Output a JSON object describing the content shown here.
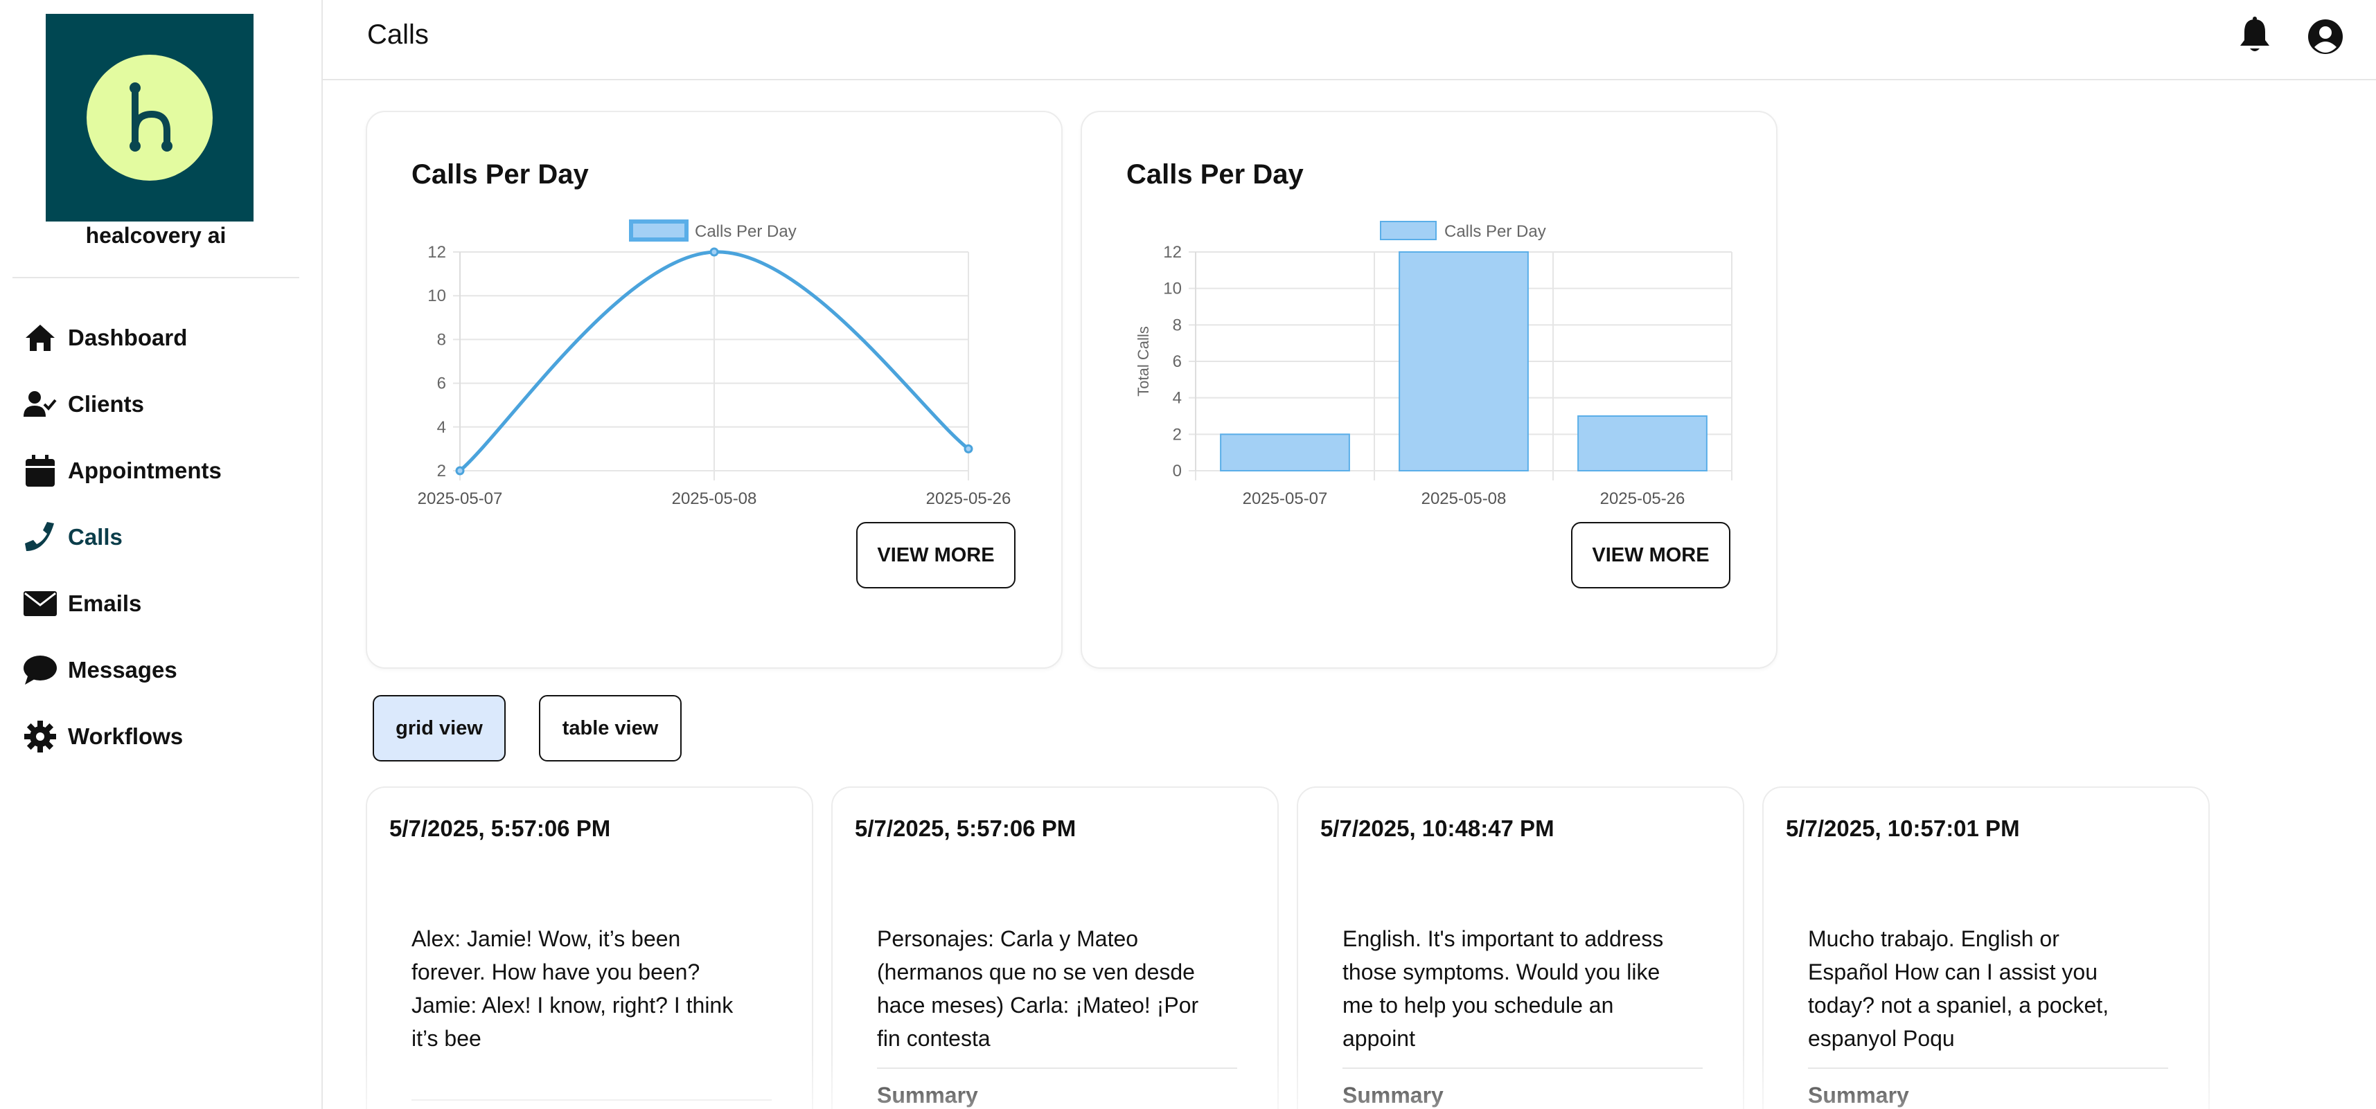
{
  "brand": {
    "name": "healcovery ai",
    "logo_letter": "h",
    "logo_bg": "#004752",
    "logo_circle": "#e3fba0"
  },
  "sidebar": {
    "items": [
      {
        "label": "Dashboard",
        "icon": "home-icon"
      },
      {
        "label": "Clients",
        "icon": "user-check-icon"
      },
      {
        "label": "Appointments",
        "icon": "calendar-icon"
      },
      {
        "label": "Calls",
        "icon": "phone-icon",
        "active": true
      },
      {
        "label": "Emails",
        "icon": "envelope-icon"
      },
      {
        "label": "Messages",
        "icon": "chat-bubble-icon"
      },
      {
        "label": "Workflows",
        "icon": "gear-icon"
      }
    ],
    "active_color": "#0b3d4a"
  },
  "header": {
    "title": "Calls",
    "icons": [
      "bell-icon",
      "account-circle-icon"
    ]
  },
  "charts": {
    "view_more_label": "VIEW MORE",
    "line_color": "#4aa3dc",
    "bar_fill": "#a3d0f5",
    "bar_stroke": "#5aaee8"
  },
  "chart_data": [
    {
      "type": "line",
      "title": "Calls Per Day",
      "categories": [
        "2025-05-07",
        "2025-05-08",
        "2025-05-26"
      ],
      "series": [
        {
          "name": "Calls Per Day",
          "values": [
            2,
            12,
            3
          ]
        }
      ],
      "ylim": [
        2,
        12
      ],
      "yticks": [
        2,
        4,
        6,
        8,
        10,
        12
      ],
      "xlabel": "",
      "ylabel": "",
      "legend": "top-center",
      "grid": true
    },
    {
      "type": "bar",
      "title": "Calls Per Day",
      "categories": [
        "2025-05-07",
        "2025-05-08",
        "2025-05-26"
      ],
      "series": [
        {
          "name": "Calls Per Day",
          "values": [
            2,
            12,
            3
          ]
        }
      ],
      "ylim": [
        0,
        12
      ],
      "yticks": [
        0,
        2,
        4,
        6,
        8,
        10,
        12
      ],
      "xlabel": "",
      "ylabel": "Total Calls",
      "legend": "top-center",
      "grid": true
    }
  ],
  "view_toggle": {
    "grid_label": "grid view",
    "table_label": "table view",
    "selected": "grid view"
  },
  "calls": [
    {
      "time": "5/7/2025, 5:57:06 PM",
      "lines": [
        "Alex: Jamie! Wow, it’s been",
        "forever. How have you been?",
        "Jamie: Alex! I know, right? I think",
        "it’s bee"
      ],
      "summary_label": ""
    },
    {
      "time": "5/7/2025, 5:57:06 PM",
      "lines": [
        "Personajes: Carla y Mateo",
        "(hermanos que no se ven desde",
        "hace meses) Carla: ¡Mateo! ¡Por",
        "fin contesta"
      ],
      "summary_label": "Summary"
    },
    {
      "time": "5/7/2025, 10:48:47 PM",
      "lines": [
        "English. It's important to address",
        "those symptoms. Would you like",
        "me to help you schedule an",
        "appoint"
      ],
      "summary_label": "Summary"
    },
    {
      "time": "5/7/2025, 10:57:01 PM",
      "lines": [
        "Mucho trabajo. English or",
        "Español How can I assist you",
        "today? not a spaniel, a pocket,",
        "espanyol Poqu"
      ],
      "summary_label": "Summary"
    }
  ]
}
